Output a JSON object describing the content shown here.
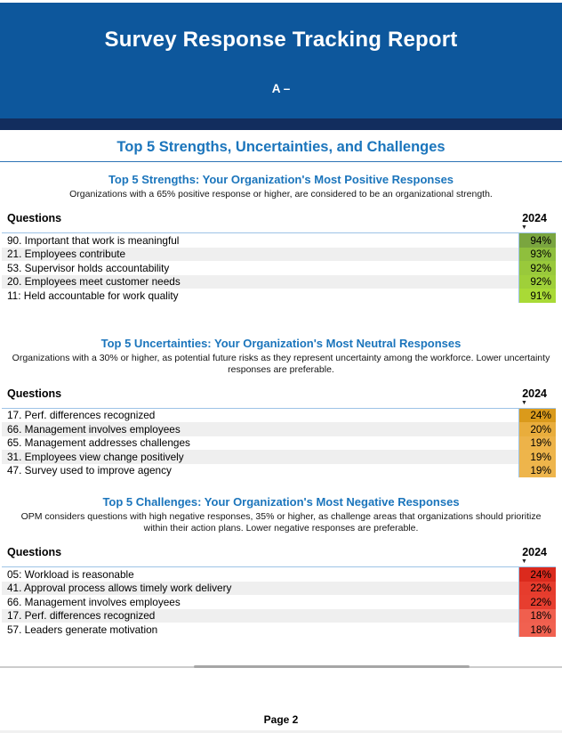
{
  "header": {
    "title": "Survey Response Tracking Report",
    "subtitle": "A –"
  },
  "main_title": "Top 5 Strengths, Uncertainties, and Challenges",
  "footer": {
    "label": "Page 2"
  },
  "colors": {
    "header_background": "#0D579C",
    "header_bottom_bar": "#122D5E",
    "accent_blue": "#1B75BC",
    "table_border_blue": "#9DC3E6",
    "row_stripe": "#EFEFEF"
  },
  "sort_icon": "▼",
  "sections": [
    {
      "id": "strengths",
      "heading": "Top 5 Strengths: Your Organization's Most Positive Responses",
      "description": "Organizations with a 65% positive response or higher, are considered to be an organizational strength.",
      "columns": {
        "question": "Questions",
        "year": "2024"
      },
      "rows": [
        {
          "question": "90. Important that work is meaningful",
          "value": "94%",
          "color": "#7AA53F"
        },
        {
          "question": "21. Employees contribute",
          "value": "93%",
          "color": "#8FBF3D"
        },
        {
          "question": "53. Supervisor holds accountability",
          "value": "92%",
          "color": "#99C93B"
        },
        {
          "question": "20. Employees meet customer needs",
          "value": "92%",
          "color": "#9FD039"
        },
        {
          "question": "11: Held accountable for work quality",
          "value": "91%",
          "color": "#A9DA36"
        }
      ]
    },
    {
      "id": "uncertainties",
      "heading": "Top 5 Uncertainties: Your Organization's Most Neutral Responses",
      "description": "Organizations with a 30% or higher, as potential future risks as they represent uncertainty among the workforce. Lower uncertainty responses are preferable.",
      "columns": {
        "question": "Questions",
        "year": "2024"
      },
      "rows": [
        {
          "question": "17. Perf. differences recognized",
          "value": "24%",
          "color": "#DA9A1B"
        },
        {
          "question": "66. Management involves employees",
          "value": "20%",
          "color": "#E9AD3C"
        },
        {
          "question": "65. Management addresses challenges",
          "value": "19%",
          "color": "#EDB349"
        },
        {
          "question": "31. Employees view change positively",
          "value": "19%",
          "color": "#EEB54B"
        },
        {
          "question": "47. Survey used to improve agency",
          "value": "19%",
          "color": "#EEB54C"
        }
      ]
    },
    {
      "id": "challenges",
      "heading": "Top 5 Challenges: Your Organization's Most Negative Responses",
      "description": "OPM considers questions with high negative responses, 35% or higher, as challenge areas that organizations should prioritize within their action plans. Lower negative responses are preferable.",
      "columns": {
        "question": "Questions",
        "year": "2024"
      },
      "rows": [
        {
          "question": "05: Workload is reasonable",
          "value": "24%",
          "color": "#DB2A1D"
        },
        {
          "question": "41. Approval process allows timely work delivery",
          "value": "22%",
          "color": "#E63C2D"
        },
        {
          "question": "66. Management involves employees",
          "value": "22%",
          "color": "#E73E2F"
        },
        {
          "question": "17. Perf. differences recognized",
          "value": "18%",
          "color": "#F05F4E"
        },
        {
          "question": "57. Leaders generate motivation",
          "value": "18%",
          "color": "#F16150"
        }
      ]
    }
  ]
}
